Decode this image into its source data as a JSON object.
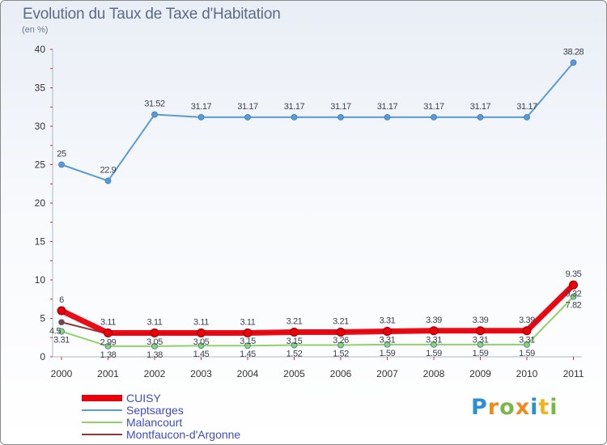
{
  "chart_data": {
    "type": "line",
    "title": "Evolution du Taux de Taxe d'Habitation",
    "ylabel": "(en %)",
    "xlabel": "",
    "x": [
      "2000",
      "2001",
      "2002",
      "2003",
      "2004",
      "2005",
      "2006",
      "2007",
      "2008",
      "2009",
      "2010",
      "2011"
    ],
    "ylim": [
      0,
      40
    ],
    "yticks": [
      0,
      5,
      10,
      15,
      20,
      25,
      30,
      35,
      40
    ],
    "legend_position": "bottom-left",
    "series": [
      {
        "name": "CUISY",
        "color": "#e8000b",
        "values": [
          6,
          3.11,
          3.11,
          3.11,
          3.11,
          3.21,
          3.21,
          3.31,
          3.39,
          3.39,
          3.39,
          9.35
        ],
        "labels": [
          "6",
          "3.11",
          "3.11",
          "3.11",
          "3.11",
          "3.21",
          "3.21",
          "3.31",
          "3.39",
          "3.39",
          "3.39",
          "9.35"
        ]
      },
      {
        "name": "Septsarges",
        "color": "#5b9bd5",
        "values": [
          25,
          22.9,
          31.52,
          31.17,
          31.17,
          31.17,
          31.17,
          31.17,
          31.17,
          31.17,
          31.17,
          38.28
        ],
        "labels": [
          "25",
          "22.9",
          "31.52",
          "31.17",
          "31.17",
          "31.17",
          "31.17",
          "31.17",
          "31.17",
          "31.17",
          "31.17",
          "38.28"
        ]
      },
      {
        "name": "Malancourt",
        "color": "#8fd16a",
        "values": [
          3.31,
          1.38,
          1.38,
          1.45,
          1.45,
          1.52,
          1.52,
          1.59,
          1.59,
          1.59,
          1.59,
          7.82
        ],
        "labels": [
          "3.31",
          "1.38",
          "1.38",
          "1.45",
          "1.45",
          "1.52",
          "1.52",
          "1.59",
          "1.59",
          "1.59",
          "1.59",
          "7.82"
        ]
      },
      {
        "name": "Montfaucon-d'Argonne",
        "color": "#8b3a3a",
        "values": [
          4.5,
          2.99,
          3.05,
          3.05,
          3.15,
          3.15,
          3.26,
          3.31,
          3.31,
          3.31,
          3.31,
          9.32
        ],
        "labels": [
          "4.5",
          "2.99",
          "3.05",
          "3.05",
          "3.15",
          "3.15",
          "3.26",
          "3.31",
          "3.31",
          "3.31",
          "3.31",
          "9.32"
        ]
      }
    ]
  },
  "logo": {
    "text": "Proxiti"
  }
}
